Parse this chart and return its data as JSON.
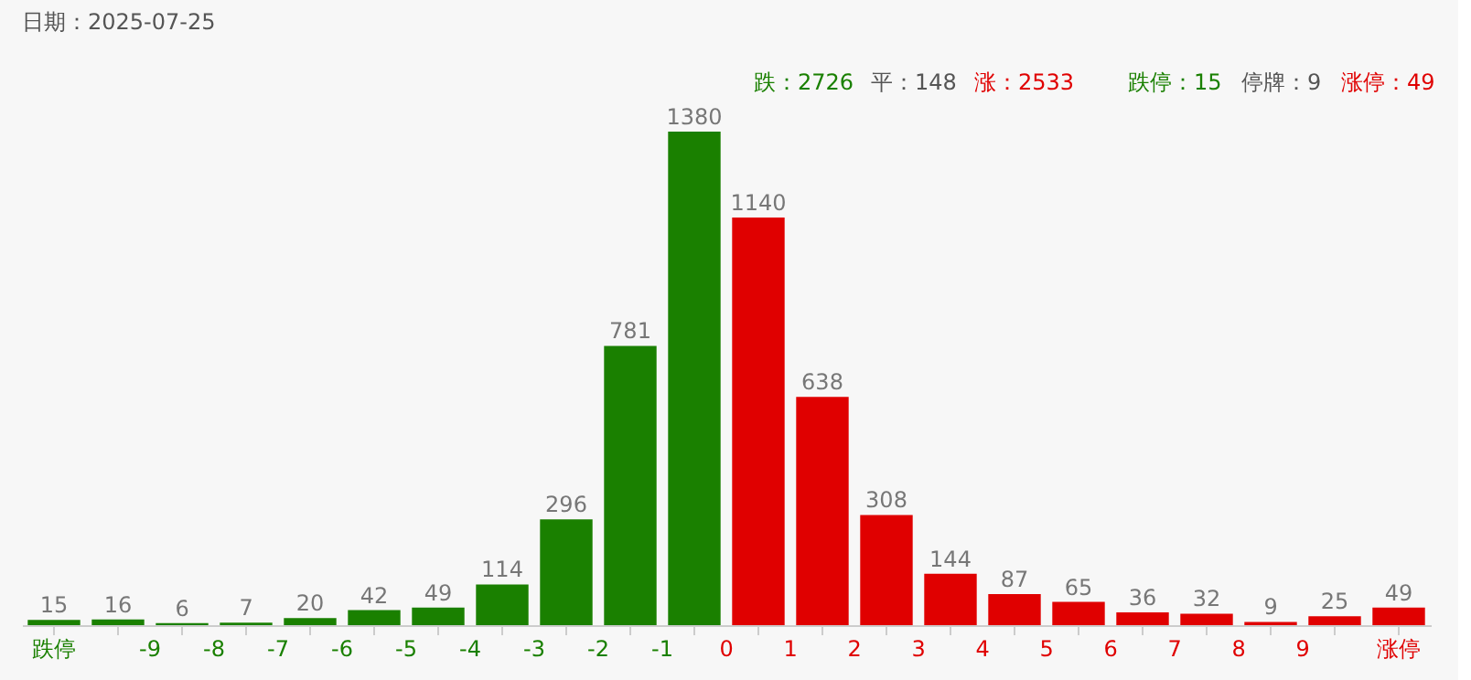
{
  "chart_data": {
    "type": "bar",
    "title": "日期：2025-07-25",
    "annotations": [
      "跌：2726",
      "平：148",
      "涨：2533",
      "跌停：15",
      "停牌：9",
      "涨停：49"
    ],
    "categories": [
      "跌停",
      null,
      "-9",
      "-8",
      "-7",
      "-6",
      "-5",
      "-4",
      "-3",
      "-2",
      "-1",
      "0",
      "1",
      "2",
      "3",
      "4",
      "5",
      "6",
      "7",
      "8",
      "9",
      "涨停"
    ],
    "values": [
      15,
      16,
      6,
      7,
      20,
      42,
      49,
      114,
      296,
      781,
      1380,
      1140,
      638,
      308,
      144,
      87,
      65,
      36,
      32,
      9,
      25,
      49
    ],
    "colors": [
      "#1a8000",
      "#1a8000",
      "#1a8000",
      "#1a8000",
      "#1a8000",
      "#1a8000",
      "#1a8000",
      "#1a8000",
      "#1a8000",
      "#1a8000",
      "#1a8000",
      "#e00000",
      "#e00000",
      "#e00000",
      "#e00000",
      "#e00000",
      "#e00000",
      "#e00000",
      "#e00000",
      "#e00000",
      "#e00000",
      "#e00000"
    ],
    "data_labels": true,
    "grid": false
  }
}
